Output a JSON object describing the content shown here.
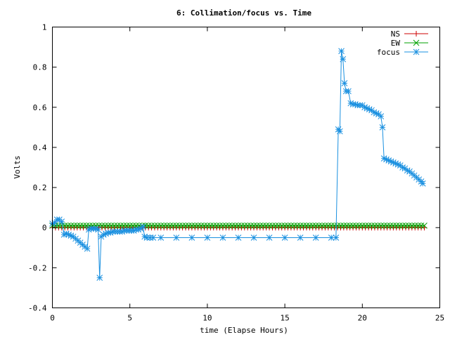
{
  "chart_data": {
    "type": "line",
    "title": "6: Collimation/focus vs. Time",
    "xlabel": "time (Elapse Hours)",
    "ylabel": "Volts",
    "xlim": [
      0,
      25
    ],
    "ylim": [
      -0.4,
      1.0
    ],
    "xticks": [
      0,
      5,
      10,
      15,
      20,
      25
    ],
    "yticks": [
      -0.4,
      -0.2,
      0,
      0.2,
      0.4,
      0.6,
      0.8,
      1.0
    ],
    "xtick_labels": [
      "0",
      "5",
      "10",
      "15",
      "20",
      "25"
    ],
    "ytick_labels": [
      "-0.4",
      "-0.2",
      "0",
      "0.2",
      "0.4",
      "0.6",
      "0.8",
      "1"
    ],
    "grid": false,
    "legend_position": "top-right",
    "series": [
      {
        "name": "NS",
        "color": "#cc0000",
        "marker": "plus",
        "constant": {
          "x_start": 0,
          "x_end": 24,
          "step": 0.2,
          "y": 0.0
        }
      },
      {
        "name": "EW",
        "color": "#00a000",
        "marker": "cross",
        "constant": {
          "x_start": 0,
          "x_end": 24,
          "step": 0.2,
          "y": 0.01
        }
      },
      {
        "name": "focus",
        "color": "#1a90e0",
        "marker": "star",
        "points": [
          [
            0.0,
            0.02
          ],
          [
            0.15,
            0.025
          ],
          [
            0.3,
            0.04
          ],
          [
            0.45,
            0.04
          ],
          [
            0.6,
            0.03
          ],
          [
            0.75,
            -0.035
          ],
          [
            0.9,
            -0.03
          ],
          [
            1.05,
            -0.035
          ],
          [
            1.2,
            -0.04
          ],
          [
            1.35,
            -0.045
          ],
          [
            1.5,
            -0.055
          ],
          [
            1.65,
            -0.065
          ],
          [
            1.8,
            -0.075
          ],
          [
            1.95,
            -0.085
          ],
          [
            2.1,
            -0.095
          ],
          [
            2.25,
            -0.105
          ],
          [
            2.35,
            -0.01
          ],
          [
            2.5,
            -0.005
          ],
          [
            2.65,
            -0.005
          ],
          [
            2.8,
            -0.005
          ],
          [
            2.95,
            -0.01
          ],
          [
            3.05,
            -0.25
          ],
          [
            3.15,
            -0.045
          ],
          [
            3.3,
            -0.035
          ],
          [
            3.45,
            -0.03
          ],
          [
            3.6,
            -0.025
          ],
          [
            3.75,
            -0.025
          ],
          [
            3.9,
            -0.02
          ],
          [
            4.05,
            -0.02
          ],
          [
            4.2,
            -0.02
          ],
          [
            4.35,
            -0.02
          ],
          [
            4.5,
            -0.02
          ],
          [
            4.65,
            -0.015
          ],
          [
            4.8,
            -0.015
          ],
          [
            4.95,
            -0.015
          ],
          [
            5.1,
            -0.015
          ],
          [
            5.25,
            -0.015
          ],
          [
            5.4,
            -0.01
          ],
          [
            5.55,
            -0.01
          ],
          [
            5.7,
            -0.005
          ],
          [
            5.85,
            0.005
          ],
          [
            5.95,
            -0.045
          ],
          [
            6.1,
            -0.05
          ],
          [
            6.3,
            -0.05
          ],
          [
            6.5,
            -0.05
          ],
          [
            7.0,
            -0.05
          ],
          [
            8.0,
            -0.05
          ],
          [
            9.0,
            -0.05
          ],
          [
            10.0,
            -0.05
          ],
          [
            11.0,
            -0.05
          ],
          [
            12.0,
            -0.05
          ],
          [
            13.0,
            -0.05
          ],
          [
            14.0,
            -0.05
          ],
          [
            15.0,
            -0.05
          ],
          [
            16.0,
            -0.05
          ],
          [
            17.0,
            -0.05
          ],
          [
            18.0,
            -0.05
          ],
          [
            18.3,
            -0.05
          ],
          [
            18.45,
            0.49
          ],
          [
            18.55,
            0.48
          ],
          [
            18.65,
            0.88
          ],
          [
            18.75,
            0.84
          ],
          [
            18.85,
            0.72
          ],
          [
            18.95,
            0.68
          ],
          [
            19.1,
            0.68
          ],
          [
            19.25,
            0.62
          ],
          [
            19.4,
            0.615
          ],
          [
            19.55,
            0.615
          ],
          [
            19.7,
            0.61
          ],
          [
            19.85,
            0.61
          ],
          [
            20.0,
            0.61
          ],
          [
            20.15,
            0.6
          ],
          [
            20.3,
            0.595
          ],
          [
            20.45,
            0.59
          ],
          [
            20.6,
            0.585
          ],
          [
            20.75,
            0.575
          ],
          [
            20.9,
            0.57
          ],
          [
            21.05,
            0.565
          ],
          [
            21.2,
            0.555
          ],
          [
            21.3,
            0.5
          ],
          [
            21.4,
            0.345
          ],
          [
            21.55,
            0.34
          ],
          [
            21.7,
            0.335
          ],
          [
            21.85,
            0.33
          ],
          [
            22.0,
            0.325
          ],
          [
            22.15,
            0.32
          ],
          [
            22.3,
            0.315
          ],
          [
            22.45,
            0.31
          ],
          [
            22.6,
            0.3
          ],
          [
            22.75,
            0.295
          ],
          [
            22.9,
            0.285
          ],
          [
            23.05,
            0.28
          ],
          [
            23.2,
            0.27
          ],
          [
            23.35,
            0.26
          ],
          [
            23.5,
            0.25
          ],
          [
            23.65,
            0.24
          ],
          [
            23.8,
            0.23
          ],
          [
            23.9,
            0.22
          ]
        ]
      }
    ]
  }
}
